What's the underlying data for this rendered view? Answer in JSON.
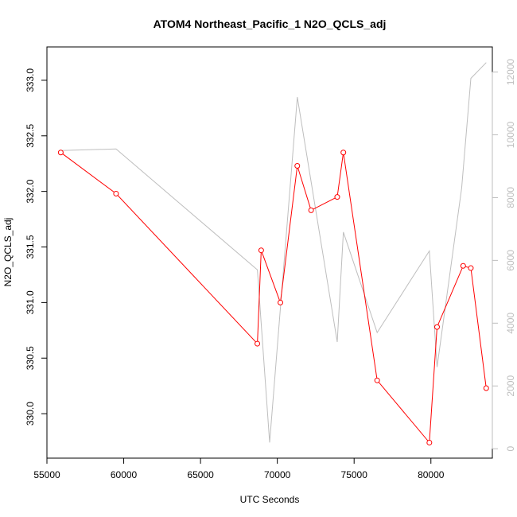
{
  "chart_data": {
    "type": "line",
    "title": "ATOM4 Northeast_Pacific_1 N2O_QCLS_adj",
    "xlabel": "UTC Seconds",
    "ylabel": "N2O_QCLS_adj",
    "xlim": [
      55000,
      84000
    ],
    "ylim_left": [
      329.6,
      333.3
    ],
    "ylim_right": [
      -300,
      12800
    ],
    "x_ticks": [
      55000,
      60000,
      65000,
      70000,
      75000,
      80000
    ],
    "x_tick_labels": [
      "55000",
      "60000",
      "65000",
      "70000",
      "75000",
      "80000"
    ],
    "y_left_ticks": [
      330.0,
      330.5,
      331.0,
      331.5,
      332.0,
      332.5,
      333.0
    ],
    "y_left_tick_labels": [
      "330.0",
      "330.5",
      "331.0",
      "331.5",
      "332.0",
      "332.5",
      "333.0"
    ],
    "y_right_ticks": [
      0,
      2000,
      4000,
      6000,
      8000,
      10000,
      12000
    ],
    "y_right_tick_labels": [
      "0",
      "2000",
      "4000",
      "6000",
      "8000",
      "10000",
      "12000"
    ],
    "grid": false,
    "series": [
      {
        "color": "#ff0000",
        "axis": "left",
        "marker": "open-circle",
        "x": [
          55900,
          59500,
          68700,
          68950,
          70200,
          71300,
          72200,
          73900,
          74300,
          76500,
          79900,
          80400,
          82100,
          82600,
          83600
        ],
        "y": [
          332.35,
          331.98,
          330.63,
          331.47,
          331.0,
          332.23,
          331.83,
          331.95,
          332.35,
          330.3,
          329.74,
          330.78,
          331.33,
          331.31,
          330.23
        ]
      },
      {
        "color": "#bebebe",
        "axis": "right",
        "marker": "none",
        "x": [
          55900,
          59500,
          68700,
          69500,
          71300,
          73900,
          74300,
          76500,
          79900,
          80400,
          82000,
          82600,
          83600
        ],
        "y": [
          9500,
          9550,
          5700,
          200,
          11200,
          3400,
          6900,
          3700,
          6300,
          2600,
          8300,
          11800,
          12300
        ]
      }
    ]
  }
}
